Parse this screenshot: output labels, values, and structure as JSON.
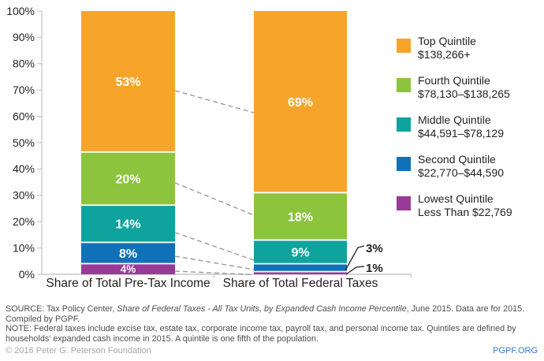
{
  "colors": {
    "orange": "#F7A42B",
    "green": "#8CC43E",
    "teal": "#0FA39E",
    "blue": "#1171B8",
    "purple": "#983B97",
    "connector_gray": "#9B9B9B",
    "axis_gray": "#C7C8CA",
    "text_dark": "#231F20",
    "note_gray": "#4D4D4F",
    "copyright_gray": "#A5A7AA",
    "link_blue": "#3479C8",
    "label_white": "#FFFFFF"
  },
  "chart_data": {
    "type": "bar",
    "stacked": true,
    "title": "",
    "categories": [
      "Share of Total Pre-Tax Income",
      "Share of Total Federal Taxes"
    ],
    "series": [
      {
        "name": "Top Quintile",
        "income_range": "$138,266+",
        "color": "#F7A42B",
        "values": [
          53,
          69
        ]
      },
      {
        "name": "Fourth Quintile",
        "income_range": "$78,130–$138,265",
        "color": "#8CC43E",
        "values": [
          20,
          18
        ]
      },
      {
        "name": "Middle Quintile",
        "income_range": "$44,591–$78,129",
        "color": "#0FA39E",
        "values": [
          14,
          9
        ]
      },
      {
        "name": "Second Quintile",
        "income_range": "$22,770–$44,590",
        "color": "#1171B8",
        "values": [
          8,
          3
        ]
      },
      {
        "name": "Lowest Quintile",
        "income_range": "Less Than $22,769",
        "color": "#983B97",
        "values": [
          4,
          1
        ]
      }
    ],
    "value_labels": [
      [
        "53%",
        "69%"
      ],
      [
        "20%",
        "18%"
      ],
      [
        "14%",
        "9%"
      ],
      [
        "8%",
        null
      ],
      [
        "4%",
        null
      ]
    ],
    "callout_labels": [
      "3%",
      "1%"
    ],
    "y_ticks": [
      "0%",
      "10%",
      "20%",
      "30%",
      "40%",
      "50%",
      "60%",
      "70%",
      "80%",
      "90%",
      "100%"
    ],
    "ylim": [
      0,
      100
    ],
    "grid": false,
    "legend_position": "right"
  },
  "footer": {
    "source_prefix": "SOURCE: Tax Policy Center, ",
    "source_italic": "Share of Federal Taxes - All Tax Units, by Expanded Cash Income Percentile",
    "source_suffix": ", June 2015. Data are for 2015. Compiled by PGPF.",
    "note": "NOTE: Federal taxes include excise tax, estate tax, corporate income tax, payroll tax, and personal income tax. Quintiles are defined by households’ expanded cash income in 2015. A quintile is one fifth of the population.",
    "copyright": "© 2016 Peter G. Peterson Foundation",
    "site": "PGPF.ORG"
  }
}
